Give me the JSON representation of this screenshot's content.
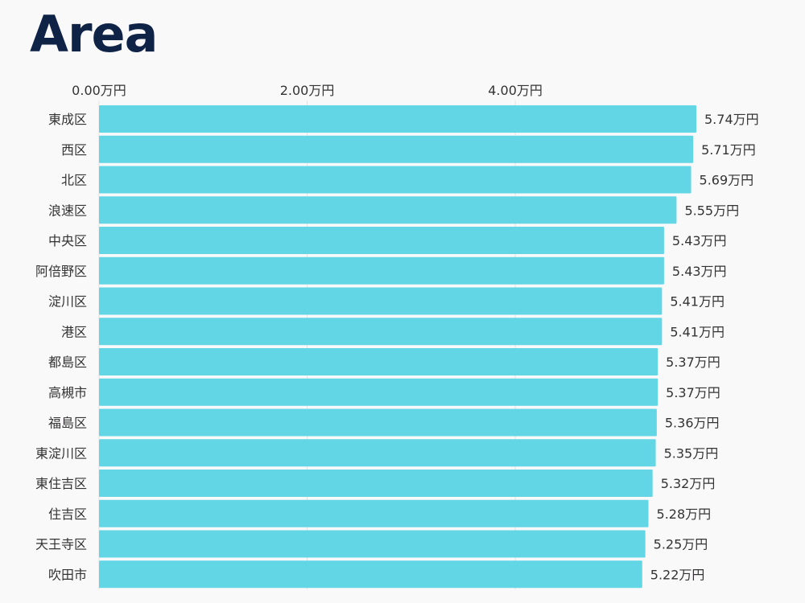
{
  "chart_data": {
    "type": "bar",
    "orientation": "horizontal",
    "title": "Area",
    "xlabel": "",
    "ylabel": "",
    "unit_suffix": "万円",
    "xlim": [
      0,
      5.74
    ],
    "x_ticks": [
      0,
      2,
      4
    ],
    "x_tick_labels": [
      "0.00万円",
      "2.00万円",
      "4.00万円"
    ],
    "grid": "vertical",
    "bar_color": "#63d6e6",
    "categories": [
      "東成区",
      "西区",
      "北区",
      "浪速区",
      "中央区",
      "阿倍野区",
      "淀川区",
      "港区",
      "都島区",
      "高槻市",
      "福島区",
      "東淀川区",
      "東住吉区",
      "住吉区",
      "天王寺区",
      "吹田市"
    ],
    "values": [
      5.74,
      5.71,
      5.69,
      5.55,
      5.43,
      5.43,
      5.41,
      5.41,
      5.37,
      5.37,
      5.36,
      5.35,
      5.32,
      5.28,
      5.25,
      5.22
    ],
    "value_labels": [
      "5.74万円",
      "5.71万円",
      "5.69万円",
      "5.55万円",
      "5.43万円",
      "5.43万円",
      "5.41万円",
      "5.41万円",
      "5.37万円",
      "5.37万円",
      "5.36万円",
      "5.35万円",
      "5.32万円",
      "5.28万円",
      "5.25万円",
      "5.22万円"
    ]
  },
  "colors": {
    "title": "#0f2347",
    "bar": "#63d6e6",
    "grid": "#e2e2e2",
    "background": "#faf9fa"
  }
}
